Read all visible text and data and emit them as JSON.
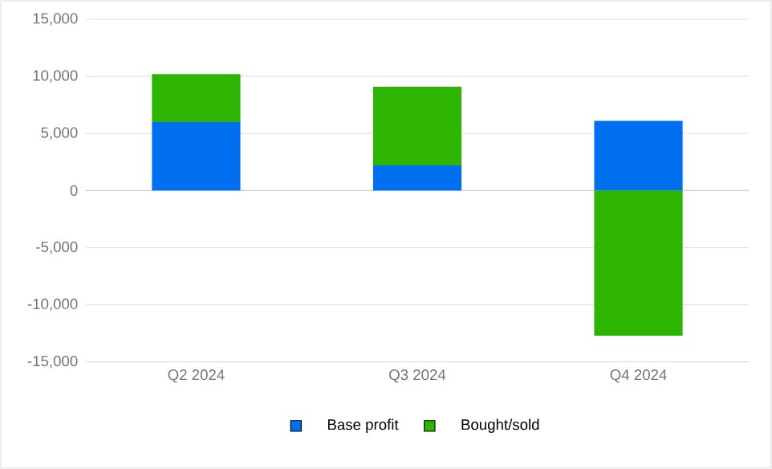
{
  "chart_data": {
    "type": "bar",
    "stacked": true,
    "categories": [
      "Q2 2024",
      "Q3 2024",
      "Q4 2024"
    ],
    "series": [
      {
        "name": "Base profit",
        "color": "#006ff0",
        "values": [
          6000,
          2200,
          6100
        ]
      },
      {
        "name": "Bought/sold",
        "color": "#2eb502",
        "values": [
          4200,
          6900,
          -12700
        ]
      }
    ],
    "ylim": [
      -15000,
      15000
    ],
    "yticks": [
      {
        "value": -15000,
        "label": "-15,000"
      },
      {
        "value": -10000,
        "label": "-10,000"
      },
      {
        "value": -5000,
        "label": "-5,000"
      },
      {
        "value": 0,
        "label": "0"
      },
      {
        "value": 5000,
        "label": "5,000"
      },
      {
        "value": 10000,
        "label": "10,000"
      },
      {
        "value": 15000,
        "label": "15,000"
      }
    ],
    "grid": "y",
    "legend": "bottom"
  }
}
